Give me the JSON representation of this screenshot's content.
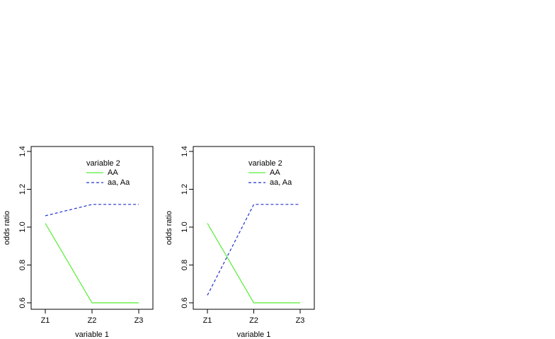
{
  "chart_data": [
    {
      "type": "line",
      "x_label": "variable 1",
      "y_label": "odds ratio",
      "categories": [
        "Z1",
        "Z2",
        "Z3"
      ],
      "legend_title": "variable 2",
      "series": [
        {
          "name": "AA",
          "color": "#55ee33",
          "dash": "solid",
          "values": [
            1.02,
            0.6,
            0.6
          ]
        },
        {
          "name": "aa, Aa",
          "color": "#2233cc",
          "dash": "dashed",
          "values": [
            1.06,
            1.12,
            1.12
          ]
        }
      ],
      "ylim": [
        0.566,
        1.426
      ],
      "yticks": [
        0.6,
        0.8,
        {
          "value": 1,
          "label": "1.0"
        },
        1.2,
        1.4
      ]
    },
    {
      "type": "line",
      "x_label": "variable 1",
      "y_label": "odds ratio",
      "categories": [
        "Z1",
        "Z2",
        "Z3"
      ],
      "legend_title": "variable 2",
      "series": [
        {
          "name": "AA",
          "color": "#55ee33",
          "dash": "solid",
          "values": [
            1.02,
            0.6,
            0.6
          ]
        },
        {
          "name": "aa, Aa",
          "color": "#2233cc",
          "dash": "dashed",
          "values": [
            0.64,
            1.12,
            1.12
          ]
        }
      ],
      "ylim": [
        0.566,
        1.426
      ],
      "yticks": [
        0.6,
        0.8,
        {
          "value": 1,
          "label": "1.0"
        },
        1.2,
        1.4
      ]
    }
  ]
}
